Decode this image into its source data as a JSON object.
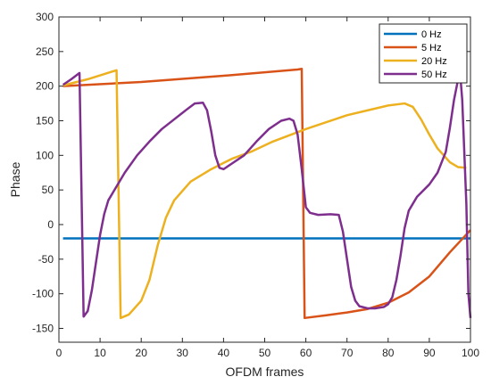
{
  "chart_data": {
    "type": "line",
    "title": "",
    "xlabel": "OFDM frames",
    "ylabel": "Phase",
    "xlim": [
      0,
      100
    ],
    "ylim": [
      -170,
      300
    ],
    "xticks": [
      0,
      10,
      20,
      30,
      40,
      50,
      60,
      70,
      80,
      90,
      100
    ],
    "yticks": [
      -150,
      -100,
      -50,
      0,
      50,
      100,
      150,
      200,
      250,
      300
    ],
    "grid": false,
    "legend_position": "top-right",
    "series": [
      {
        "name": "0 Hz",
        "color": "#0072BD",
        "points": [
          [
            1,
            -20
          ],
          [
            100,
            -20
          ]
        ]
      },
      {
        "name": "5 Hz",
        "color": "#D95319",
        "points": [
          [
            1,
            200
          ],
          [
            20,
            206
          ],
          [
            40,
            215
          ],
          [
            58,
            224
          ],
          [
            59,
            225
          ],
          [
            59.7,
            -135
          ],
          [
            65,
            -131
          ],
          [
            70,
            -127
          ],
          [
            75,
            -122
          ],
          [
            80,
            -113
          ],
          [
            85,
            -98
          ],
          [
            90,
            -75
          ],
          [
            95,
            -40
          ],
          [
            100,
            -8
          ]
        ]
      },
      {
        "name": "20 Hz",
        "color": "#EDB120",
        "points": [
          [
            1,
            201
          ],
          [
            7,
            210
          ],
          [
            14,
            223
          ],
          [
            15,
            -135
          ],
          [
            17,
            -130
          ],
          [
            20,
            -110
          ],
          [
            22,
            -80
          ],
          [
            24,
            -30
          ],
          [
            26,
            10
          ],
          [
            28,
            35
          ],
          [
            32,
            62
          ],
          [
            37,
            80
          ],
          [
            42,
            95
          ],
          [
            47,
            106
          ],
          [
            52,
            120
          ],
          [
            60,
            138
          ],
          [
            70,
            158
          ],
          [
            80,
            172
          ],
          [
            84,
            175
          ],
          [
            86,
            170
          ],
          [
            88,
            152
          ],
          [
            90,
            130
          ],
          [
            92,
            110
          ],
          [
            95,
            90
          ],
          [
            97,
            83
          ],
          [
            99,
            82
          ]
        ]
      },
      {
        "name": "50 Hz",
        "color": "#7E2F8E",
        "points": [
          [
            1,
            202
          ],
          [
            3,
            210
          ],
          [
            5,
            219
          ],
          [
            6,
            -133
          ],
          [
            7,
            -125
          ],
          [
            8,
            -95
          ],
          [
            9,
            -55
          ],
          [
            10,
            -15
          ],
          [
            11,
            15
          ],
          [
            12,
            35
          ],
          [
            14,
            55
          ],
          [
            16,
            75
          ],
          [
            19,
            100
          ],
          [
            22,
            120
          ],
          [
            25,
            138
          ],
          [
            28,
            152
          ],
          [
            31,
            166
          ],
          [
            33,
            175
          ],
          [
            35,
            176
          ],
          [
            36,
            165
          ],
          [
            37,
            135
          ],
          [
            38,
            100
          ],
          [
            39,
            82
          ],
          [
            40,
            80
          ],
          [
            42,
            88
          ],
          [
            45,
            100
          ],
          [
            48,
            120
          ],
          [
            51,
            138
          ],
          [
            54,
            150
          ],
          [
            56,
            153
          ],
          [
            57,
            150
          ],
          [
            58,
            130
          ],
          [
            59,
            80
          ],
          [
            60,
            25
          ],
          [
            61,
            17
          ],
          [
            63,
            14
          ],
          [
            66,
            15
          ],
          [
            68,
            14
          ],
          [
            69,
            -10
          ],
          [
            70,
            -50
          ],
          [
            71,
            -90
          ],
          [
            72,
            -110
          ],
          [
            73,
            -118
          ],
          [
            75,
            -121
          ],
          [
            77,
            -121
          ],
          [
            79,
            -119
          ],
          [
            80,
            -115
          ],
          [
            81,
            -105
          ],
          [
            82,
            -80
          ],
          [
            83,
            -45
          ],
          [
            84,
            -5
          ],
          [
            85,
            20
          ],
          [
            87,
            40
          ],
          [
            90,
            58
          ],
          [
            92,
            75
          ],
          [
            93,
            90
          ],
          [
            94,
            105
          ],
          [
            95,
            140
          ],
          [
            96,
            180
          ],
          [
            97,
            210
          ],
          [
            97.5,
            218
          ],
          [
            98,
            180
          ],
          [
            99,
            30
          ],
          [
            99.5,
            -100
          ],
          [
            100,
            -135
          ]
        ]
      }
    ]
  }
}
